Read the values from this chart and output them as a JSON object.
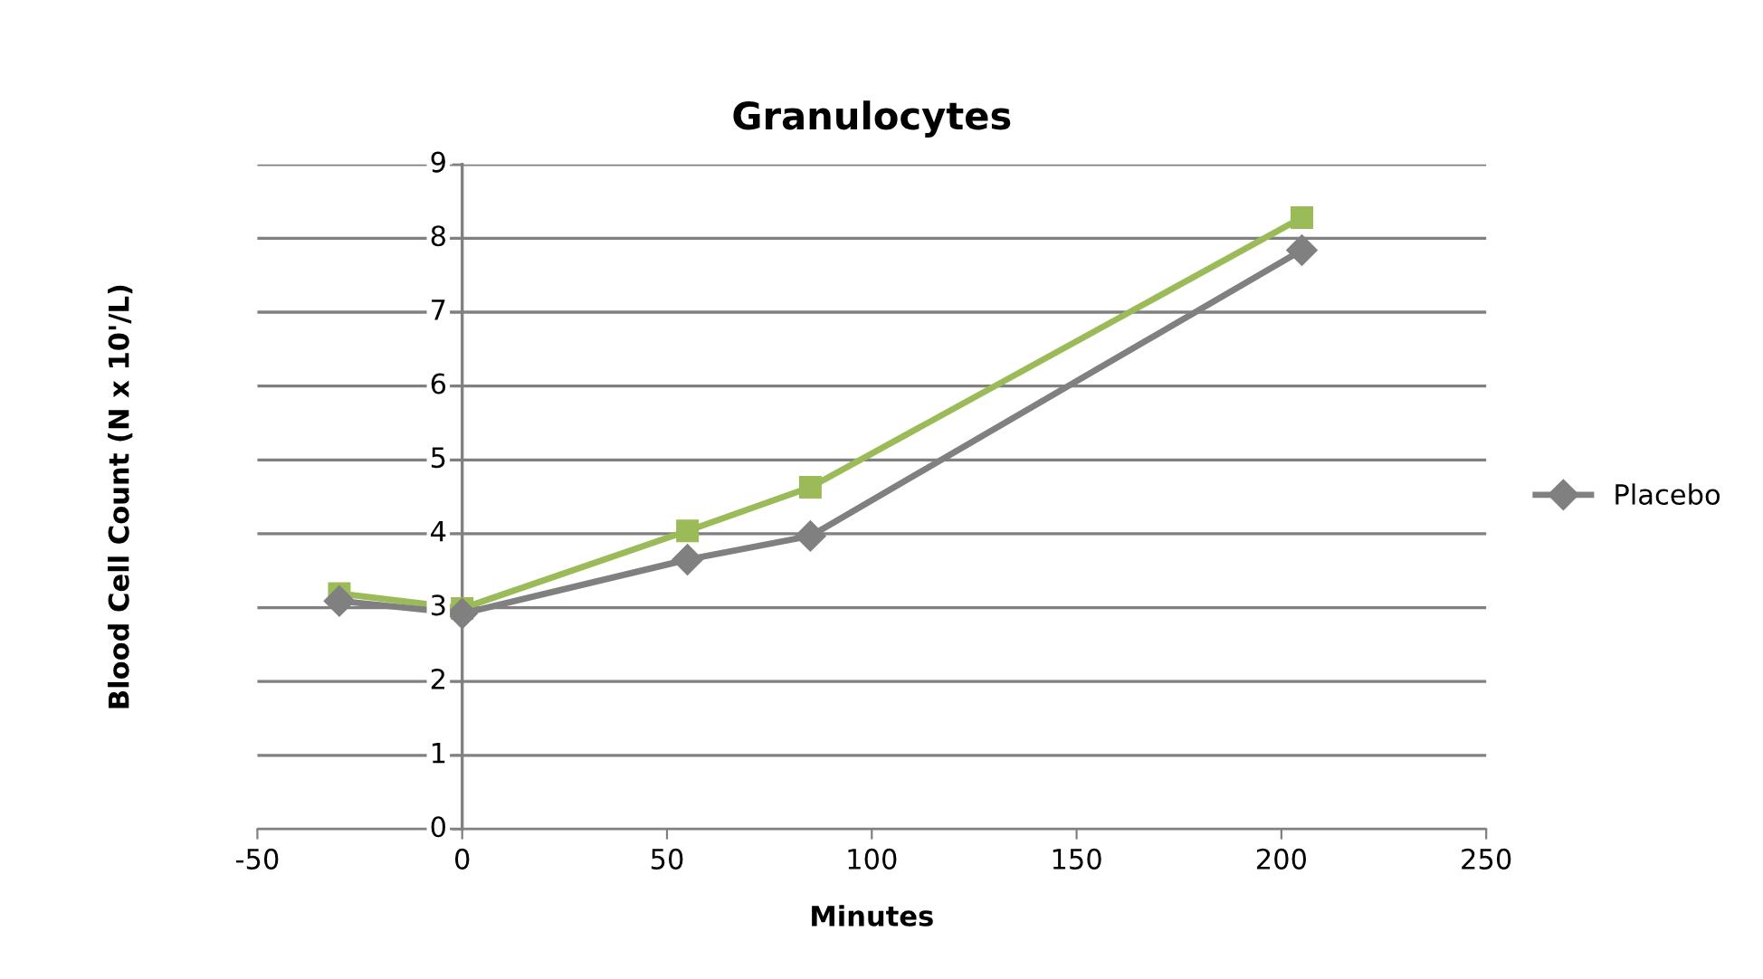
{
  "chart_data": {
    "type": "line",
    "title": "Granulocytes",
    "xlabel": "Minutes",
    "ylabel": "Blood Cell Count (N x 10'/L)",
    "x": [
      -30,
      0,
      55,
      85,
      205
    ],
    "series": [
      {
        "name": "Placebo",
        "color": "#808080",
        "marker": "diamond",
        "values": [
          3.09,
          2.92,
          3.65,
          3.97,
          7.84
        ]
      },
      {
        "color": "#9bbb59",
        "marker": "square",
        "values": [
          3.19,
          2.99,
          4.04,
          4.63,
          8.28
        ]
      }
    ],
    "xlim": [
      -50,
      250
    ],
    "xticks": [
      -50,
      0,
      50,
      100,
      150,
      200,
      250
    ],
    "ylim": [
      0,
      9
    ],
    "yticks": [
      0,
      1,
      2,
      3,
      4,
      5,
      6,
      7,
      8,
      9
    ],
    "grid": "y",
    "legend": "right",
    "line_style": "solid"
  }
}
